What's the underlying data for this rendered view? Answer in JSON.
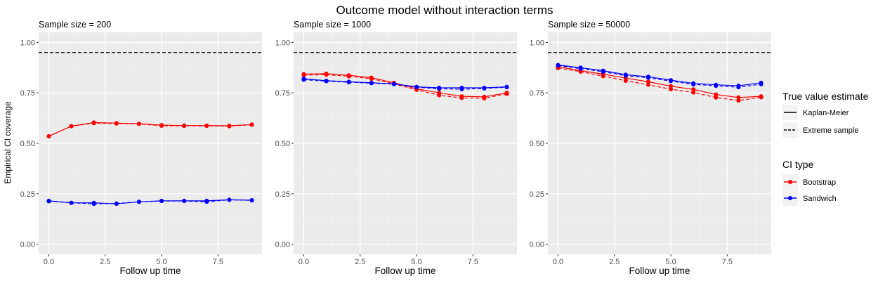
{
  "chart_data": {
    "type": "line",
    "title": "Outcome model without interaction terms",
    "xlabel": "Follow up time",
    "ylabel": "Empirical CI coverage",
    "xlim": [
      -0.45,
      9.45
    ],
    "ylim": [
      -0.05,
      1.05
    ],
    "x_ticks": [
      0,
      2.5,
      5,
      7.5
    ],
    "x_tick_labels": [
      "0.0",
      "2.5",
      "5.0",
      "7.5"
    ],
    "y_ticks": [
      0,
      0.25,
      0.5,
      0.75,
      1
    ],
    "y_tick_labels": [
      "0.00",
      "0.25",
      "0.50",
      "0.75",
      "1.00"
    ],
    "reference_line": 0.95,
    "grid": true,
    "legend_position": "right",
    "legends": {
      "linetype_title": "True value estimate",
      "linetype_items": [
        {
          "label": "Kaplan-Meier",
          "dash": "solid"
        },
        {
          "label": "Extreme sample",
          "dash": "dashed"
        }
      ],
      "color_title": "CI type",
      "color_items": [
        {
          "label": "Bootstrap",
          "color": "#ff0000"
        },
        {
          "label": "Sandwich",
          "color": "#0000ff"
        }
      ]
    },
    "x": [
      0,
      1,
      2,
      3,
      4,
      5,
      6,
      7,
      8,
      9
    ],
    "panels": [
      {
        "label": "Sample size = 200",
        "series": [
          {
            "ci": "Bootstrap",
            "estimate": "Kaplan-Meier",
            "color": "#ff0000",
            "values": [
              0.535,
              0.585,
              0.603,
              0.6,
              0.597,
              0.59,
              0.588,
              0.588,
              0.587,
              0.593
            ]
          },
          {
            "ci": "Bootstrap",
            "estimate": "Extreme sample",
            "color": "#ff0000",
            "values": [
              0.535,
              0.585,
              0.6,
              0.598,
              0.596,
              0.587,
              0.586,
              0.586,
              0.585,
              0.592
            ]
          },
          {
            "ci": "Sandwich",
            "estimate": "Kaplan-Meier",
            "color": "#0000ff",
            "values": [
              0.215,
              0.205,
              0.205,
              0.2,
              0.21,
              0.215,
              0.215,
              0.215,
              0.22,
              0.218
            ]
          },
          {
            "ci": "Sandwich",
            "estimate": "Extreme sample",
            "color": "#0000ff",
            "values": [
              0.213,
              0.205,
              0.2,
              0.202,
              0.21,
              0.214,
              0.214,
              0.21,
              0.22,
              0.217
            ]
          }
        ]
      },
      {
        "label": "Sample size = 1000",
        "series": [
          {
            "ci": "Bootstrap",
            "estimate": "Kaplan-Meier",
            "color": "#ff0000",
            "values": [
              0.843,
              0.845,
              0.837,
              0.825,
              0.8,
              0.77,
              0.75,
              0.733,
              0.73,
              0.75
            ]
          },
          {
            "ci": "Bootstrap",
            "estimate": "Extreme sample",
            "color": "#ff0000",
            "values": [
              0.838,
              0.84,
              0.832,
              0.82,
              0.795,
              0.765,
              0.738,
              0.725,
              0.723,
              0.745
            ]
          },
          {
            "ci": "Sandwich",
            "estimate": "Kaplan-Meier",
            "color": "#0000ff",
            "values": [
              0.82,
              0.81,
              0.805,
              0.8,
              0.795,
              0.78,
              0.775,
              0.775,
              0.775,
              0.78
            ]
          },
          {
            "ci": "Sandwich",
            "estimate": "Extreme sample",
            "color": "#0000ff",
            "values": [
              0.815,
              0.808,
              0.803,
              0.798,
              0.793,
              0.778,
              0.77,
              0.768,
              0.772,
              0.778
            ]
          }
        ]
      },
      {
        "label": "Sample size = 50000",
        "series": [
          {
            "ci": "Bootstrap",
            "estimate": "Kaplan-Meier",
            "color": "#ff0000",
            "values": [
              0.88,
              0.86,
              0.843,
              0.823,
              0.805,
              0.783,
              0.767,
              0.742,
              0.727,
              0.733
            ]
          },
          {
            "ci": "Bootstrap",
            "estimate": "Extreme sample",
            "color": "#ff0000",
            "values": [
              0.873,
              0.855,
              0.833,
              0.81,
              0.79,
              0.768,
              0.752,
              0.727,
              0.712,
              0.728
            ]
          },
          {
            "ci": "Sandwich",
            "estimate": "Kaplan-Meier",
            "color": "#0000ff",
            "values": [
              0.888,
              0.875,
              0.86,
              0.84,
              0.83,
              0.813,
              0.797,
              0.79,
              0.785,
              0.8
            ]
          },
          {
            "ci": "Sandwich",
            "estimate": "Extreme sample",
            "color": "#0000ff",
            "values": [
              0.885,
              0.87,
              0.855,
              0.835,
              0.825,
              0.808,
              0.792,
              0.785,
              0.778,
              0.793
            ]
          }
        ]
      }
    ]
  }
}
